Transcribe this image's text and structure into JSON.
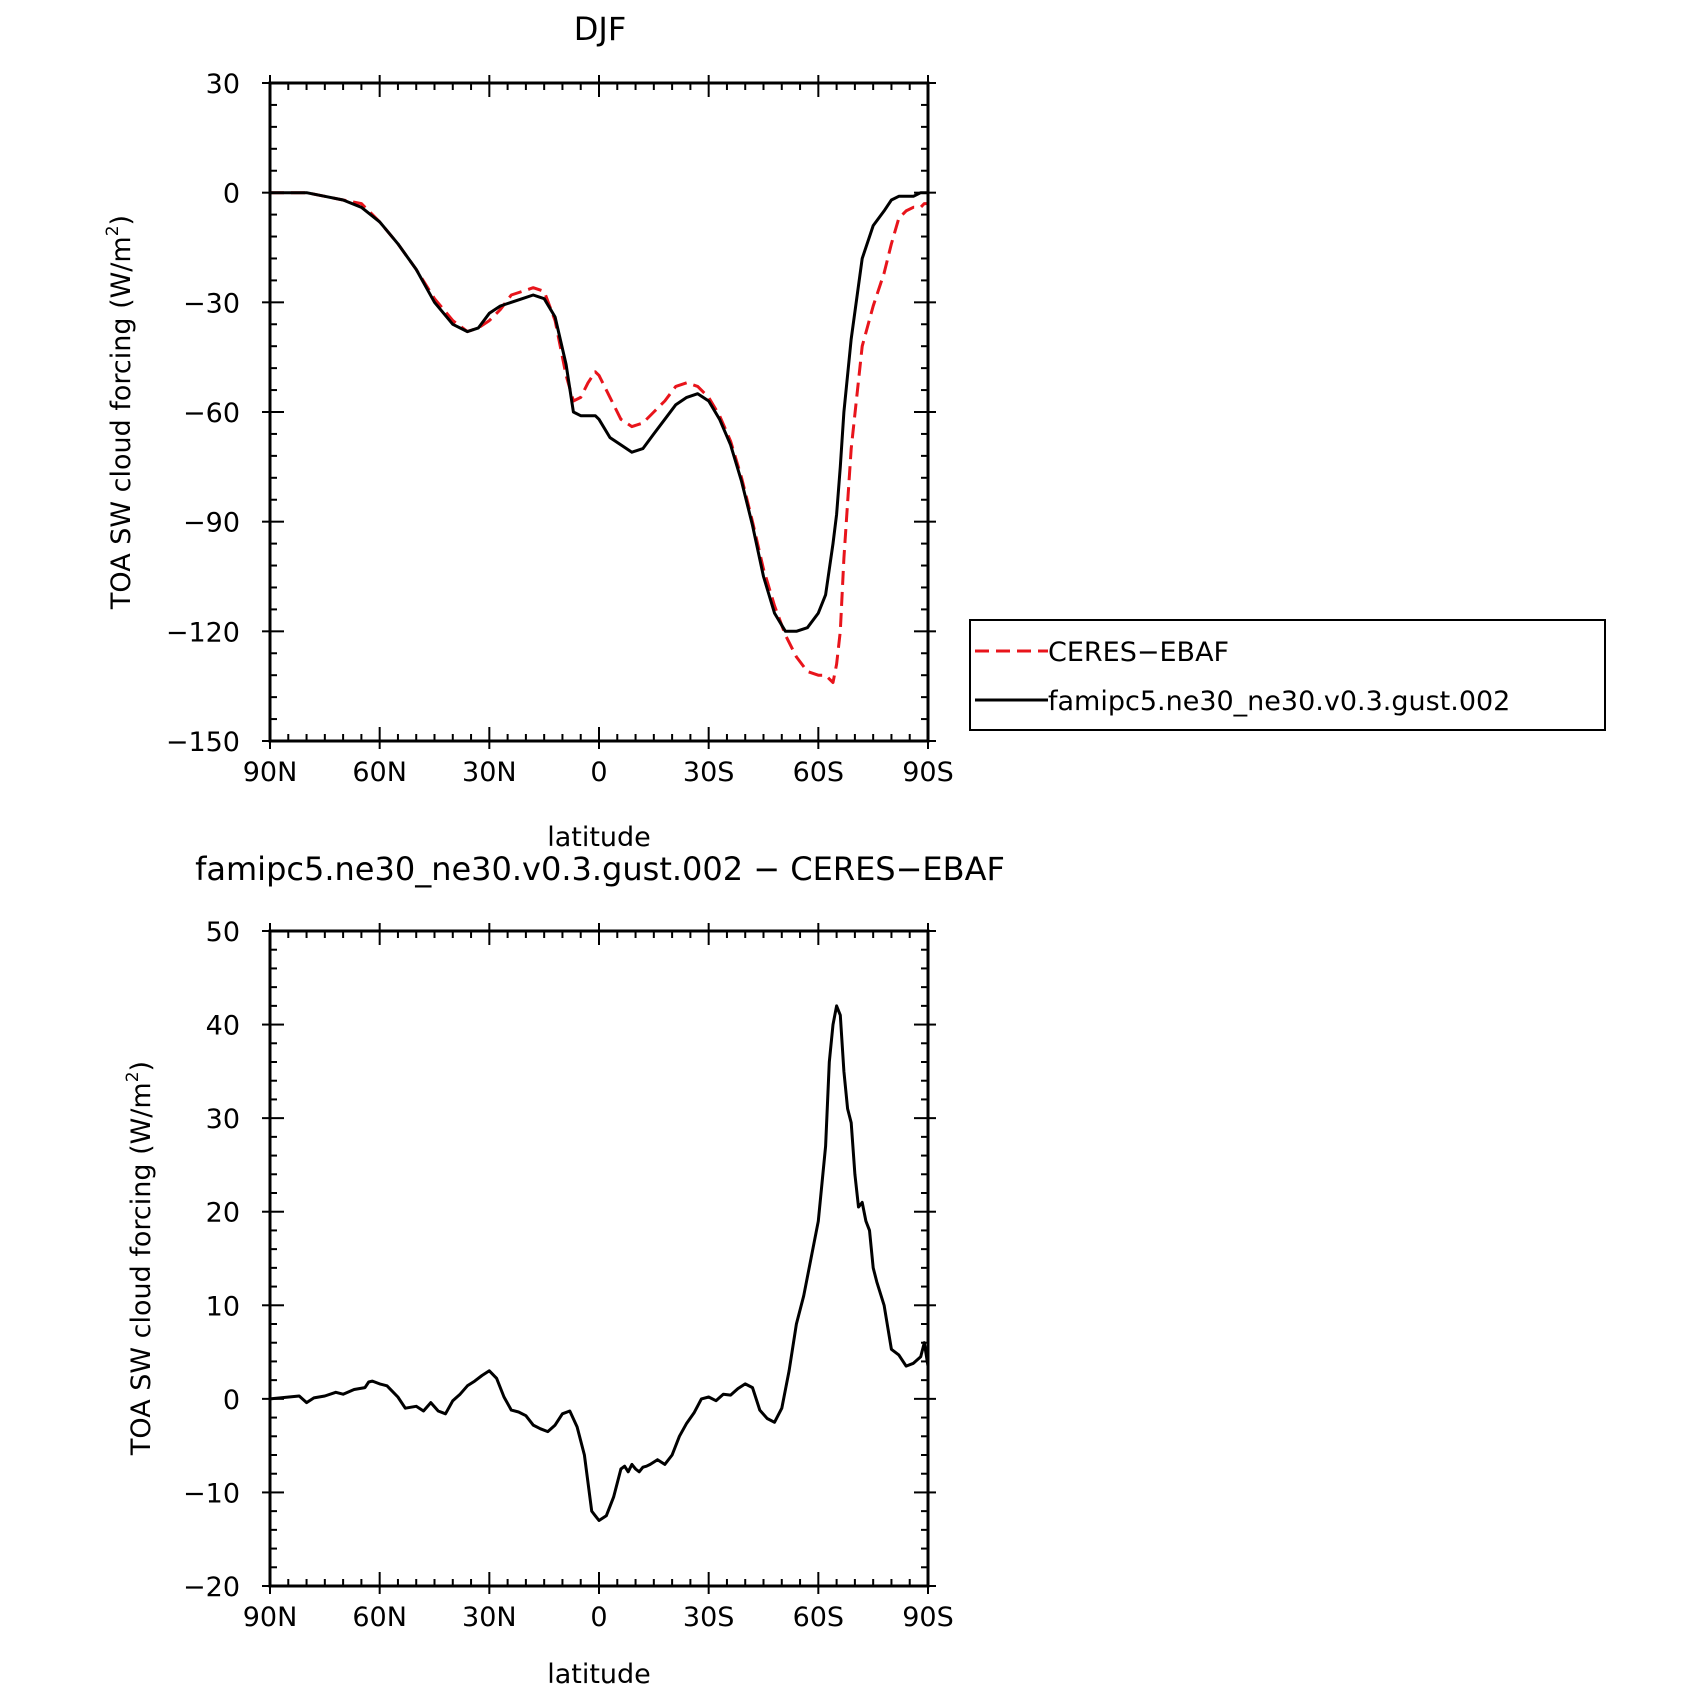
{
  "chart_data": [
    {
      "type": "line",
      "title": "DJF",
      "xlabel": "latitude",
      "ylabel": "TOA SW cloud forcing (W/m",
      "ylabel_sup": "2",
      "ylabel_end": ")",
      "xlim": [
        90,
        -90
      ],
      "ylim": [
        -150,
        30
      ],
      "x_ticks": [
        90,
        60,
        30,
        0,
        -30,
        -60,
        -90
      ],
      "x_tick_labels": [
        "90N",
        "60N",
        "30N",
        "0",
        "30S",
        "60S",
        "90S"
      ],
      "y_ticks": [
        30,
        0,
        -30,
        -60,
        -90,
        -120,
        -150
      ],
      "y_tick_labels": [
        "30",
        "0",
        "−30",
        "−60",
        "−90",
        "−120",
        "−150"
      ],
      "legend": "right",
      "series": [
        {
          "name": "CERES−EBAF",
          "color": "#e8141b",
          "dash": "dashed",
          "x": [
            90,
            80,
            75,
            70,
            65,
            60,
            55,
            50,
            45,
            40,
            36,
            33,
            30,
            27,
            24,
            21,
            18,
            15,
            12,
            9,
            7,
            5,
            3,
            1,
            0,
            -3,
            -6,
            -9,
            -12,
            -15,
            -18,
            -21,
            -24,
            -27,
            -30,
            -33,
            -36,
            -39,
            -42,
            -45,
            -48,
            -51,
            -54,
            -57,
            -60,
            -62,
            -63,
            -64,
            -65,
            -66,
            -67,
            -69,
            -72,
            -75,
            -78,
            -80,
            -82,
            -84,
            -86,
            -88,
            -89,
            -90
          ],
          "y": [
            0,
            0,
            -1,
            -2,
            -3,
            -8,
            -14,
            -21,
            -29,
            -35,
            -38,
            -37,
            -35,
            -32,
            -28,
            -27,
            -26,
            -27,
            -35,
            -50,
            -57,
            -56,
            -52,
            -49,
            -50,
            -56,
            -62,
            -64,
            -63,
            -60,
            -57,
            -53,
            -52,
            -53,
            -56,
            -61,
            -68,
            -78,
            -90,
            -103,
            -113,
            -121,
            -127,
            -131,
            -132,
            -132,
            -133,
            -134,
            -129,
            -120,
            -100,
            -70,
            -42,
            -31,
            -22,
            -14,
            -7,
            -5,
            -4,
            -4,
            -3,
            -3
          ]
        },
        {
          "name": "famipc5.ne30_ne30.v0.3.gust.002",
          "color": "#000000",
          "dash": "solid",
          "x": [
            90,
            80,
            75,
            70,
            65,
            60,
            55,
            50,
            45,
            40,
            36,
            33,
            30,
            27,
            24,
            21,
            18,
            15,
            12,
            9,
            7,
            5,
            3,
            1,
            0,
            -3,
            -6,
            -9,
            -12,
            -15,
            -18,
            -21,
            -24,
            -27,
            -30,
            -33,
            -36,
            -39,
            -42,
            -45,
            -48,
            -51,
            -54,
            -57,
            -60,
            -62,
            -63,
            -64,
            -65,
            -66,
            -67,
            -69,
            -72,
            -75,
            -78,
            -80,
            -82,
            -84,
            -86,
            -88,
            -89,
            -90
          ],
          "y": [
            0,
            0,
            -1,
            -2,
            -4,
            -8,
            -14,
            -21,
            -30,
            -36,
            -38,
            -37,
            -33,
            -31,
            -30,
            -29,
            -28,
            -29,
            -34,
            -47,
            -60,
            -61,
            -61,
            -61,
            -62,
            -67,
            -69,
            -71,
            -70,
            -66,
            -62,
            -58,
            -56,
            -55,
            -57,
            -62,
            -69,
            -79,
            -91,
            -105,
            -115,
            -120,
            -120,
            -119,
            -115,
            -110,
            -103,
            -96,
            -88,
            -75,
            -60,
            -40,
            -18,
            -9,
            -5,
            -2,
            -1,
            -1,
            -1,
            0,
            0,
            0
          ]
        }
      ]
    },
    {
      "type": "line",
      "title": "famipc5.ne30_ne30.v0.3.gust.002 − CERES−EBAF",
      "xlabel": "latitude",
      "ylabel": "TOA SW cloud forcing (W/m",
      "ylabel_sup": "2",
      "ylabel_end": ")",
      "xlim": [
        90,
        -90
      ],
      "ylim": [
        -20,
        50
      ],
      "x_ticks": [
        90,
        60,
        30,
        0,
        -30,
        -60,
        -90
      ],
      "x_tick_labels": [
        "90N",
        "60N",
        "30N",
        "0",
        "30S",
        "60S",
        "90S"
      ],
      "y_ticks": [
        50,
        40,
        30,
        20,
        10,
        0,
        -10,
        -20
      ],
      "y_tick_labels": [
        "50",
        "40",
        "30",
        "20",
        "10",
        "0",
        "−10",
        "−20"
      ],
      "series": [
        {
          "color": "#000000",
          "dash": "solid",
          "x": [
            90,
            82,
            80,
            78,
            75,
            72,
            70,
            67,
            64,
            63,
            62,
            60,
            58,
            55,
            53,
            50,
            48,
            46,
            44,
            42,
            40,
            38,
            36,
            34,
            32,
            30,
            28,
            26,
            24,
            22,
            20,
            18,
            16,
            14,
            12,
            10,
            8,
            6,
            4,
            2,
            1,
            0,
            -2,
            -4,
            -6,
            -7,
            -8,
            -9,
            -10,
            -11,
            -12,
            -13,
            -14,
            -16,
            -18,
            -20,
            -22,
            -24,
            -26,
            -28,
            -30,
            -32,
            -34,
            -36,
            -38,
            -40,
            -42,
            -44,
            -46,
            -48,
            -50,
            -52,
            -54,
            -56,
            -58,
            -60,
            -62,
            -63,
            -64,
            -65,
            -66,
            -67,
            -68,
            -69,
            -70,
            -71,
            -72,
            -73,
            -74,
            -75,
            -76,
            -78,
            -80,
            -82,
            -84,
            -86,
            -88,
            -89,
            -90
          ],
          "y": [
            0,
            0.3,
            -0.4,
            0.1,
            0.3,
            0.7,
            0.5,
            1,
            1.2,
            1.8,
            1.9,
            1.6,
            1.4,
            0.2,
            -1,
            -0.8,
            -1.3,
            -0.4,
            -1.3,
            -1.6,
            -0.2,
            0.5,
            1.4,
            1.9,
            2.5,
            3,
            2.2,
            0.2,
            -1.2,
            -1.4,
            -1.8,
            -2.8,
            -3.2,
            -3.5,
            -2.8,
            -1.6,
            -1.3,
            -3,
            -6,
            -12,
            -12.5,
            -13,
            -12.5,
            -10.5,
            -7.5,
            -7.2,
            -7.8,
            -7,
            -7.5,
            -7.8,
            -7.3,
            -7.2,
            -7,
            -6.5,
            -7,
            -6,
            -4,
            -2.6,
            -1.5,
            0,
            0.2,
            -0.2,
            0.5,
            0.4,
            1.1,
            1.6,
            1.2,
            -1.2,
            -2.1,
            -2.5,
            -1,
            3,
            8,
            11,
            15,
            19,
            27,
            36,
            40,
            42,
            41,
            35,
            31,
            29.5,
            24,
            20.5,
            21,
            19,
            18,
            14,
            12.5,
            10,
            5.3,
            4.7,
            3.5,
            3.8,
            4.5,
            6,
            3.5
          ]
        }
      ]
    }
  ]
}
